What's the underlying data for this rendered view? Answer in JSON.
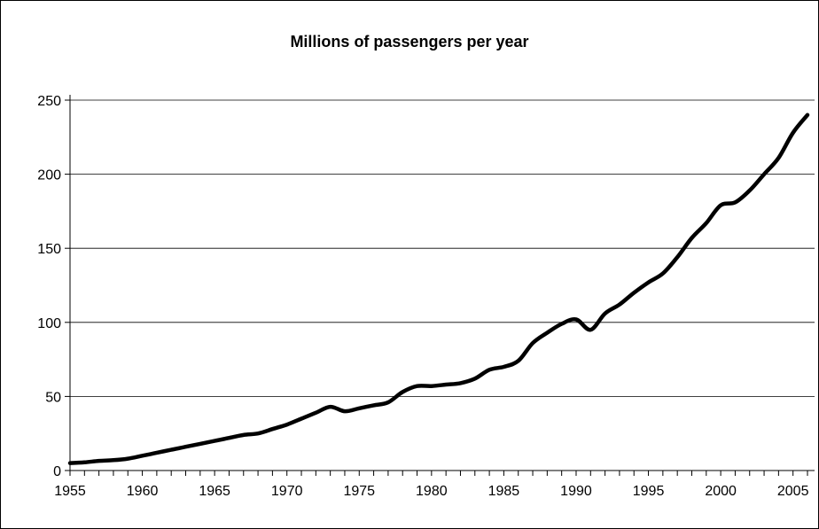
{
  "chart_data": {
    "type": "line",
    "title": "Millions of passengers per year",
    "xlabel": "",
    "ylabel": "",
    "xlim": [
      1955,
      2006
    ],
    "ylim": [
      0,
      250
    ],
    "y_ticks": [
      "0",
      "50",
      "100",
      "150",
      "200",
      "250"
    ],
    "x_ticks": [
      "1955",
      "1960",
      "1965",
      "1970",
      "1975",
      "1980",
      "1985",
      "1990",
      "1995",
      "2000",
      "2005"
    ],
    "grid": true,
    "legend": "none",
    "line_color": "#000000",
    "series": [
      {
        "x": [
          1955,
          1956,
          1957,
          1958,
          1959,
          1960,
          1961,
          1962,
          1963,
          1964,
          1965,
          1966,
          1967,
          1968,
          1969,
          1970,
          1971,
          1972,
          1973,
          1974,
          1975,
          1976,
          1977,
          1978,
          1979,
          1980,
          1981,
          1982,
          1983,
          1984,
          1985,
          1986,
          1987,
          1988,
          1989,
          1990,
          1991,
          1992,
          1993,
          1994,
          1995,
          1996,
          1997,
          1998,
          1999,
          2000,
          2001,
          2002,
          2003,
          2004,
          2005,
          2006
        ],
        "values": [
          5,
          5.5,
          6.5,
          7,
          8,
          10,
          12,
          14,
          16,
          18,
          20,
          22,
          24,
          25,
          28,
          31,
          35,
          39,
          43,
          40,
          42,
          44,
          46,
          53,
          57,
          57,
          58,
          59,
          62,
          68,
          70,
          74,
          86,
          93,
          99,
          102,
          95,
          106,
          112,
          120,
          127,
          133,
          144,
          157,
          167,
          179,
          181,
          189,
          200,
          211,
          228,
          240
        ]
      }
    ]
  }
}
